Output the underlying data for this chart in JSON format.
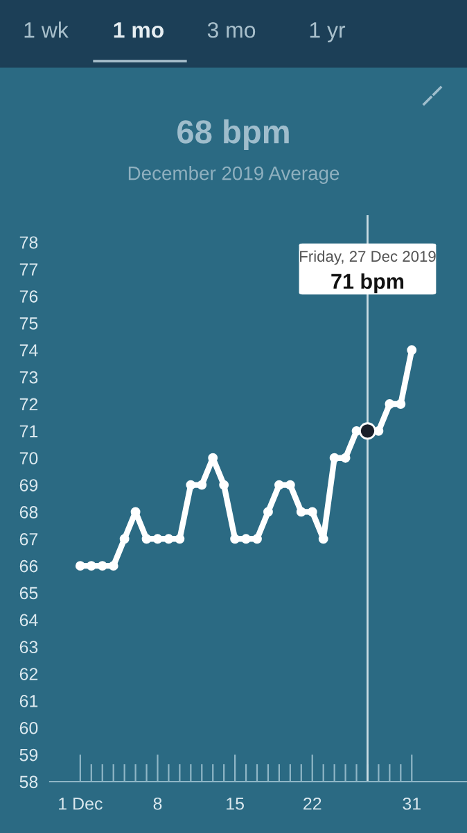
{
  "chart_data": {
    "type": "line",
    "title": "68 bpm",
    "subtitle": "December 2019 Average",
    "annotations": [
      "1 wk",
      "1 mo",
      "3 mo",
      "1 yr",
      "Friday, 27 Dec 2019",
      "71 bpm"
    ],
    "x": [
      1,
      2,
      3,
      4,
      5,
      6,
      7,
      8,
      9,
      10,
      11,
      12,
      13,
      14,
      15,
      16,
      17,
      18,
      19,
      20,
      21,
      22,
      23,
      24,
      25,
      26,
      27,
      28,
      29,
      30,
      31
    ],
    "series": [
      {
        "color": "#ffffff",
        "values": [
          66,
          66,
          66,
          66,
          67,
          68,
          67,
          67,
          67,
          67,
          69,
          69,
          70,
          69,
          67,
          67,
          67,
          68,
          69,
          69,
          68,
          68,
          67,
          70,
          70,
          71,
          71,
          71,
          72,
          72,
          74
        ]
      }
    ],
    "xlim": [
      -1.75,
      36
    ],
    "xticks": [
      {
        "value": 1,
        "label": "1 Dec"
      },
      8,
      15,
      22,
      31
    ],
    "ylim": [
      58,
      79
    ],
    "yticks": [
      58,
      59,
      60,
      61,
      62,
      63,
      64,
      65,
      66,
      67,
      68,
      69,
      70,
      71,
      72,
      73,
      74,
      75,
      76,
      77,
      78
    ],
    "ref_lines": [
      {
        "axis": "x",
        "value": 27,
        "color": "#c8dbe3"
      }
    ],
    "grid": false,
    "legend": false,
    "marker": "circle",
    "line_style": "solid"
  }
}
